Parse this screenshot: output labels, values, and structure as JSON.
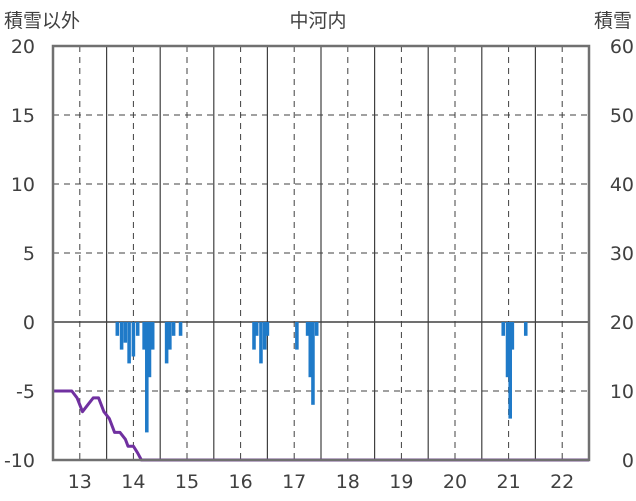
{
  "chart_data": {
    "type": "bar",
    "title": "中河内",
    "left_axis": {
      "label": "積雪以外",
      "ylim": [
        -10,
        20
      ],
      "ticks": [
        "20",
        "15",
        "10",
        "5",
        "0",
        "-5",
        "-10"
      ]
    },
    "right_axis": {
      "label": "積雪",
      "ylim": [
        0,
        60
      ],
      "ticks": [
        "60",
        "50",
        "40",
        "30",
        "20",
        "10",
        "0"
      ]
    },
    "x_axis": {
      "range": [
        12.5,
        22.5
      ],
      "ticks": [
        "13",
        "14",
        "15",
        "16",
        "17",
        "18",
        "19",
        "20",
        "21",
        "22"
      ]
    },
    "grid": true,
    "series": [
      {
        "kind": "bar",
        "axis": "left",
        "color": "#1f7ac8",
        "points": [
          {
            "x": 13.7,
            "y": -1
          },
          {
            "x": 13.78,
            "y": -2
          },
          {
            "x": 13.85,
            "y": -1.5
          },
          {
            "x": 13.92,
            "y": -3
          },
          {
            "x": 14.0,
            "y": -2.5
          },
          {
            "x": 14.08,
            "y": -1
          },
          {
            "x": 14.2,
            "y": -2
          },
          {
            "x": 14.25,
            "y": -8
          },
          {
            "x": 14.3,
            "y": -4
          },
          {
            "x": 14.36,
            "y": -2
          },
          {
            "x": 14.62,
            "y": -3
          },
          {
            "x": 14.68,
            "y": -2
          },
          {
            "x": 14.75,
            "y": -1
          },
          {
            "x": 14.88,
            "y": -1
          },
          {
            "x": 16.25,
            "y": -2
          },
          {
            "x": 16.3,
            "y": -1
          },
          {
            "x": 16.38,
            "y": -3
          },
          {
            "x": 16.45,
            "y": -2
          },
          {
            "x": 16.5,
            "y": -1
          },
          {
            "x": 17.05,
            "y": -2
          },
          {
            "x": 17.25,
            "y": -1
          },
          {
            "x": 17.3,
            "y": -4
          },
          {
            "x": 17.35,
            "y": -6
          },
          {
            "x": 17.42,
            "y": -1
          },
          {
            "x": 20.9,
            "y": -1
          },
          {
            "x": 20.98,
            "y": -4
          },
          {
            "x": 21.03,
            "y": -7
          },
          {
            "x": 21.07,
            "y": -2
          },
          {
            "x": 21.32,
            "y": -1
          }
        ]
      },
      {
        "kind": "line",
        "axis": "right",
        "color": "#7030a0",
        "points": [
          [
            12.5,
            10
          ],
          [
            12.85,
            10
          ],
          [
            12.95,
            9
          ],
          [
            13.05,
            7
          ],
          [
            13.15,
            8
          ],
          [
            13.25,
            9
          ],
          [
            13.35,
            9
          ],
          [
            13.45,
            7
          ],
          [
            13.55,
            6
          ],
          [
            13.65,
            4
          ],
          [
            13.75,
            4
          ],
          [
            13.85,
            3
          ],
          [
            13.9,
            2
          ],
          [
            14.0,
            2
          ],
          [
            14.08,
            1
          ],
          [
            14.15,
            0
          ],
          [
            22.5,
            0
          ]
        ]
      }
    ]
  }
}
